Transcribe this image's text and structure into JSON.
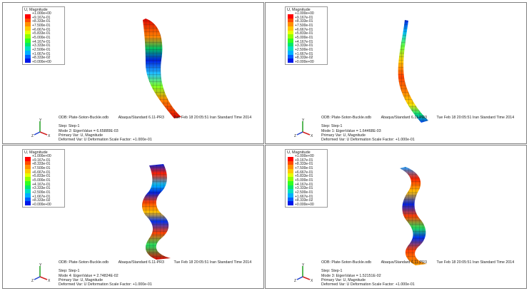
{
  "legend": {
    "title": "U, Magnitude",
    "labels": [
      "+1.000e+00",
      "+9.167e-01",
      "+8.333e-01",
      "+7.500e-01",
      "+6.667e-01",
      "+5.833e-01",
      "+5.000e-01",
      "+4.167e-01",
      "+3.333e-01",
      "+2.500e-01",
      "+1.667e-01",
      "+8.333e-02",
      "+0.000e+00"
    ],
    "colors": [
      "#ff0000",
      "#ff4a00",
      "#ff9000",
      "#ffc800",
      "#e6ff00",
      "#90ff00",
      "#30ff20",
      "#00e86a",
      "#00e0c0",
      "#00b0ff",
      "#0060ff",
      "#0018e8"
    ]
  },
  "common": {
    "odb": "ODB: Plate-Soton-Buckle.odb",
    "solver": "Abaqus/Standard 6.11-PR3",
    "date": "Tue Feb 18 20:05:51 Iran Standard Time 2014",
    "step": "Step: Step-1",
    "primary_var": "Primary Var: U, Magnitude",
    "deformed_var": "Deformed Var: U   Deformation Scale Factor: +1.000e-01"
  },
  "axes": {
    "x": "X",
    "y": "Y",
    "z": "Z"
  },
  "panels": [
    {
      "mode_line": "Mode       2: EigenValue =  6.65889E-03"
    },
    {
      "mode_line": "Mode       1: EigenValue =  1.64468E-03"
    },
    {
      "mode_line": "Mode       4: EigenValue =  2.74824E-02"
    },
    {
      "mode_line": "Mode       3: EigenValue =  1.52151E-02"
    }
  ]
}
